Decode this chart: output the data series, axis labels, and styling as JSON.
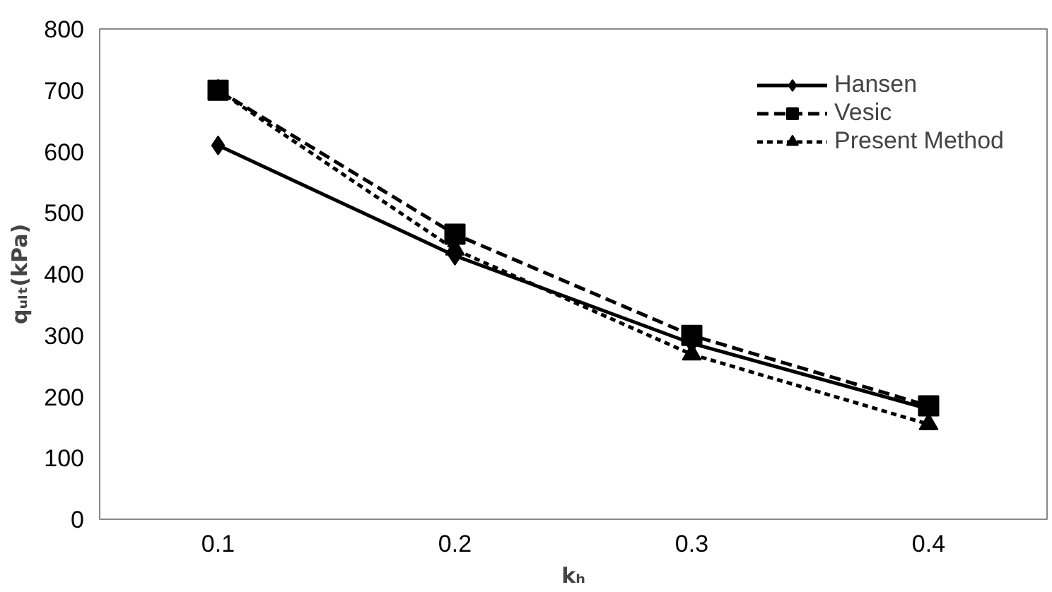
{
  "chart_data": {
    "type": "line",
    "xlabel": "kₕ",
    "ylabel": "qᵤₗₜ(kPa)",
    "categories": [
      "0.1",
      "0.2",
      "0.3",
      "0.4"
    ],
    "series": [
      {
        "name": "Hansen",
        "color": "#000000",
        "values": [
          610,
          430,
          287,
          180
        ],
        "marker": "diamond",
        "line_style": "solid"
      },
      {
        "name": "Vesic",
        "color": "#000000",
        "values": [
          700,
          465,
          300,
          185
        ],
        "marker": "square",
        "line_style": "dashed"
      },
      {
        "name": "Present Method",
        "color": "#000000",
        "values": [
          700,
          440,
          269,
          155
        ],
        "marker": "triangle",
        "line_style": "dotted"
      }
    ],
    "ylim": [
      0,
      800
    ],
    "yticks": [
      0,
      100,
      200,
      300,
      400,
      500,
      600,
      700,
      800
    ],
    "grid": false,
    "legend": "top right"
  }
}
